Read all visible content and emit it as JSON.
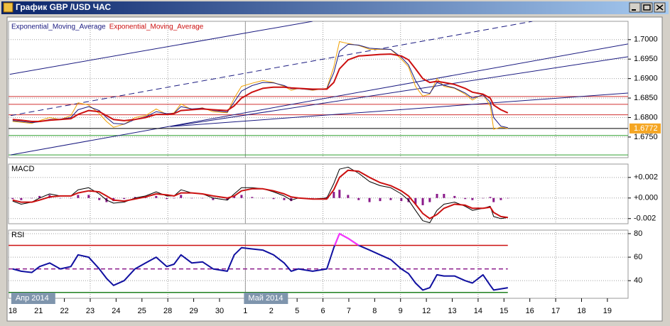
{
  "window": {
    "title": "График GBP /USD ЧАС"
  },
  "chart_data": {
    "type": "line",
    "categories": [
      "18",
      "21",
      "22",
      "23",
      "24",
      "25",
      "28",
      "29",
      "30",
      "1",
      "2",
      "5",
      "6",
      "7",
      "8",
      "9",
      "12",
      "13",
      "14",
      "15",
      "16",
      "17",
      "18",
      "19"
    ],
    "month_labels": [
      {
        "text": "Апр 2014",
        "x": 0
      },
      {
        "text": "Май 2014",
        "x": 9
      }
    ],
    "xlim": [
      -0.16,
      23.8
    ],
    "x": [
      0,
      0.33,
      0.74,
      1.04,
      1.43,
      1.84,
      2.25,
      2.53,
      2.94,
      3.35,
      3.63,
      3.9,
      4.31,
      4.73,
      5.14,
      5.55,
      5.96,
      6.24,
      6.51,
      6.93,
      7.34,
      7.75,
      8.3,
      8.57,
      8.85,
      9.26,
      9.67,
      10.09,
      10.5,
      10.77,
      11.05,
      11.6,
      12.15,
      12.42,
      12.64,
      12.97,
      13.38,
      13.8,
      14.21,
      14.62,
      15.03,
      15.31,
      15.58,
      15.86,
      16.13,
      16.41,
      16.68,
      17.09,
      17.5,
      17.78,
      18.19,
      18.47,
      18.6,
      18.88,
      19.15
    ],
    "panels": [
      {
        "ylim": [
          1.6697,
          1.7047
        ],
        "yticks": [
          {
            "value": 1.7,
            "label": "1.7000"
          },
          {
            "value": 1.695,
            "label": "1.6950"
          },
          {
            "value": 1.69,
            "label": "1.6900"
          },
          {
            "value": 1.685,
            "label": "1.6850"
          },
          {
            "value": 1.68,
            "label": "1.6800"
          },
          {
            "value": 1.675,
            "label": "1.6750"
          }
        ],
        "grid": true,
        "last_price": 1.6772,
        "last_price_color": "#f5a623",
        "levels": [
          {
            "value": 1.6854,
            "color": "#d03030"
          },
          {
            "value": 1.6834,
            "color": "#d03030"
          },
          {
            "value": 1.6807,
            "color": "#d03030"
          },
          {
            "value": 1.6754,
            "color": "#30a030"
          },
          {
            "value": 1.6704,
            "color": "#30a030"
          }
        ],
        "trendlines": [
          {
            "x": [
              -0.11,
              11.6
            ],
            "y": [
              1.6911,
              1.7047
            ],
            "color": "#1a1a80",
            "dash": false
          },
          {
            "x": [
              -0.08,
              20.1
            ],
            "y": [
              1.6805,
              1.7047
            ],
            "color": "#1a1a80",
            "dash": true
          },
          {
            "x": [
              -0.08,
              23.8
            ],
            "y": [
              1.6704,
              1.6989
            ],
            "color": "#1a1a80",
            "dash": false
          },
          {
            "x": [
              6.1,
              23.8
            ],
            "y": [
              1.6777,
              1.6956
            ],
            "color": "#1a1a80",
            "dash": false
          },
          {
            "x": [
              6.1,
              23.8
            ],
            "y": [
              1.6777,
              1.6863
            ],
            "color": "#1a1a80",
            "dash": false
          }
        ],
        "series": [
          {
            "color": "#f0a000",
            "width": 1,
            "values": [
              1.679,
              1.6788,
              1.6785,
              1.6792,
              1.68,
              1.6795,
              1.6805,
              1.6838,
              1.6832,
              1.681,
              1.679,
              1.6775,
              1.6783,
              1.68,
              1.6805,
              1.6822,
              1.6808,
              1.6812,
              1.6835,
              1.682,
              1.6825,
              1.6815,
              1.6812,
              1.685,
              1.688,
              1.6888,
              1.6895,
              1.689,
              1.688,
              1.687,
              1.6875,
              1.687,
              1.6875,
              1.693,
              1.6995,
              1.699,
              1.6985,
              1.6975,
              1.6975,
              1.6975,
              1.695,
              1.693,
              1.688,
              1.6855,
              1.686,
              1.69,
              1.688,
              1.6875,
              1.686,
              1.6845,
              1.686,
              1.683,
              1.677,
              1.6775,
              1.6772
            ]
          },
          {
            "name": "Exponential_Moving_Average",
            "color": "#1a1a80",
            "width": 1,
            "values": [
              1.6792,
              1.679,
              1.6787,
              1.6789,
              1.6795,
              1.6796,
              1.68,
              1.682,
              1.6828,
              1.6818,
              1.68,
              1.6785,
              1.6783,
              1.6795,
              1.6802,
              1.6815,
              1.681,
              1.6811,
              1.6828,
              1.6822,
              1.6824,
              1.6818,
              1.6814,
              1.684,
              1.6868,
              1.6882,
              1.689,
              1.6889,
              1.6882,
              1.6874,
              1.6874,
              1.6871,
              1.6874,
              1.6915,
              1.697,
              1.6988,
              1.6986,
              1.6978,
              1.6976,
              1.6975,
              1.6955,
              1.6935,
              1.6895,
              1.6865,
              1.6862,
              1.689,
              1.6883,
              1.6876,
              1.6863,
              1.685,
              1.6858,
              1.684,
              1.68,
              1.6778,
              1.6774
            ]
          },
          {
            "name": "Exponential_Moving_Average",
            "color": "#cc1010",
            "width": 2,
            "values": [
              1.6795,
              1.6793,
              1.679,
              1.679,
              1.6793,
              1.6795,
              1.6797,
              1.6808,
              1.6818,
              1.6815,
              1.6805,
              1.6795,
              1.6792,
              1.6795,
              1.68,
              1.6808,
              1.6808,
              1.681,
              1.6818,
              1.682,
              1.6822,
              1.682,
              1.6818,
              1.683,
              1.685,
              1.6865,
              1.6875,
              1.6878,
              1.6878,
              1.6876,
              1.6875,
              1.6873,
              1.6873,
              1.689,
              1.6925,
              1.6948,
              1.6958,
              1.696,
              1.6962,
              1.6963,
              1.6958,
              1.6948,
              1.6925,
              1.69,
              1.689,
              1.6893,
              1.689,
              1.6885,
              1.6875,
              1.6865,
              1.686,
              1.685,
              1.6832,
              1.682,
              1.6812
            ]
          }
        ]
      },
      {
        "label": "MACD",
        "ylim": [
          -0.0025,
          0.0033
        ],
        "yticks": [
          {
            "value": 0.002,
            "label": "+0.002"
          },
          {
            "value": 0,
            "label": "+0.000"
          },
          {
            "value": -0.002,
            "label": "-0.002"
          }
        ],
        "grid": true,
        "levels": [],
        "series": [
          {
            "kind": "histogram",
            "color": "#8a1a8a",
            "values": [
              -0.0001,
              -0.0002,
              0,
              0.0002,
              0.0003,
              0,
              0,
              0.0003,
              0.0003,
              -0.0002,
              -0.0004,
              -0.0003,
              -0.0001,
              0.0001,
              0.0001,
              0.0002,
              -0.0001,
              0,
              0.0003,
              0,
              0,
              -0.0002,
              -0.0002,
              0.0002,
              0.0003,
              0.0001,
              0,
              -0.0001,
              -0.0002,
              -0.0003,
              0,
              0,
              0.0001,
              0.0006,
              0.0008,
              0.0003,
              -0.0002,
              -0.0004,
              -0.0003,
              -0.0002,
              -0.0003,
              -0.0004,
              -0.0006,
              -0.0007,
              -0.0004,
              0.0004,
              0.0004,
              0.0002,
              -0.0001,
              -0.0002,
              0,
              0.0001,
              -0.0004,
              -0.0002,
              0
            ]
          },
          {
            "color": "#000000",
            "width": 1,
            "values": [
              -0.0003,
              -0.0006,
              -0.0004,
              0,
              0.0004,
              0.0002,
              0.0002,
              0.0008,
              0.001,
              0.0004,
              -0.0002,
              -0.0005,
              -0.0004,
              0,
              0.0002,
              0.0006,
              0.0002,
              0.0002,
              0.0008,
              0.0005,
              0.0004,
              0,
              -0.0002,
              0.0004,
              0.001,
              0.001,
              0.0009,
              0.0006,
              0.0002,
              -0.0002,
              0,
              -0.0001,
              0,
              0.0014,
              0.0028,
              0.003,
              0.0024,
              0.0016,
              0.0012,
              0.001,
              0.0004,
              -0.0002,
              -0.0012,
              -0.0022,
              -0.0024,
              -0.0012,
              -0.0006,
              -0.0004,
              -0.0008,
              -0.0012,
              -0.001,
              -0.0008,
              -0.0018,
              -0.002,
              -0.0019
            ]
          },
          {
            "color": "#cc1010",
            "width": 2,
            "values": [
              -0.0002,
              -0.0004,
              -0.0004,
              -0.0002,
              0.0001,
              0.0002,
              0.0002,
              0.0005,
              0.0007,
              0.0006,
              0.0002,
              -0.0002,
              -0.0003,
              -0.0001,
              0.0001,
              0.0004,
              0.0003,
              0.0002,
              0.0005,
              0.0005,
              0.0004,
              0.0002,
              0,
              0.0002,
              0.0007,
              0.0009,
              0.0009,
              0.0007,
              0.0004,
              0.0001,
              0,
              -0.0001,
              -0.0001,
              0.0008,
              0.002,
              0.0027,
              0.0026,
              0.002,
              0.0015,
              0.0012,
              0.0007,
              0.0002,
              -0.0006,
              -0.0015,
              -0.002,
              -0.0016,
              -0.001,
              -0.0006,
              -0.0007,
              -0.001,
              -0.001,
              -0.0009,
              -0.0014,
              -0.0018,
              -0.0019
            ]
          }
        ]
      },
      {
        "label": "RSI",
        "ylim": [
          25,
          83
        ],
        "yticks": [
          80,
          60,
          40
        ],
        "grid": true,
        "levels": [
          {
            "value": 70,
            "color": "#cc1010"
          },
          {
            "value": 50,
            "color": "#8a1a8a",
            "dash": true
          },
          {
            "value": 30,
            "color": "#208020"
          }
        ],
        "highlight_color": "#ff30ff",
        "series": [
          {
            "color": "#1010a0",
            "width": 2,
            "values": [
              50,
              48,
              47,
              52,
              55,
              50,
              52,
              62,
              60,
              50,
              42,
              36,
              40,
              50,
              55,
              60,
              52,
              54,
              62,
              55,
              56,
              50,
              48,
              62,
              68,
              67,
              66,
              62,
              55,
              48,
              50,
              48,
              50,
              68,
              80,
              76,
              70,
              66,
              62,
              58,
              50,
              46,
              38,
              32,
              34,
              45,
              44,
              44,
              40,
              38,
              45,
              36,
              32,
              33,
              34
            ]
          }
        ]
      }
    ]
  }
}
